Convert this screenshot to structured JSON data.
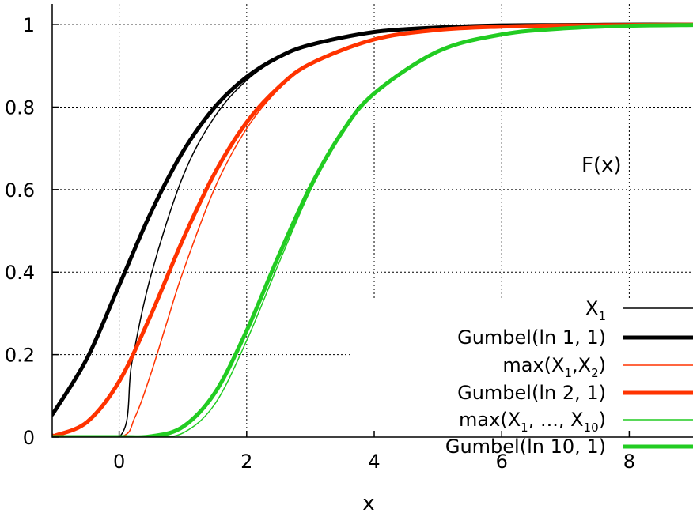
{
  "chart_data": {
    "type": "line",
    "title": "",
    "xlabel": "x",
    "ylabel": "",
    "annotation": "F(x)",
    "xlim": [
      -1.05,
      9.0
    ],
    "ylim": [
      0,
      1.05
    ],
    "x_ticks": [
      0,
      2,
      4,
      6,
      8
    ],
    "y_ticks": [
      0,
      0.2,
      0.4,
      0.6,
      0.8,
      1
    ],
    "x_tick_labels": [
      "0",
      "2",
      "4",
      "6",
      "8"
    ],
    "y_tick_labels": [
      "0",
      "0.2",
      "0.4",
      "0.6",
      "0.8",
      "1"
    ],
    "grid": true,
    "legend_position": "bottom-right",
    "series": [
      {
        "name": "X1",
        "legend": {
          "base": "X",
          "sub": "1",
          "suffix": ""
        },
        "color": "#000000",
        "width": 1.5,
        "x": [
          -1.05,
          0,
          0.2,
          0.5,
          1,
          1.5,
          2,
          2.5,
          3,
          4,
          5,
          6,
          7,
          8,
          9
        ],
        "y": [
          0,
          0,
          0.181,
          0.393,
          0.632,
          0.777,
          0.865,
          0.918,
          0.95,
          0.982,
          0.993,
          0.998,
          0.999,
          1.0,
          1.0
        ]
      },
      {
        "name": "Gumbel(ln 1, 1)",
        "legend": {
          "base": "Gumbel(ln 1, 1)",
          "sub": "",
          "suffix": ""
        },
        "color": "#000000",
        "width": 5,
        "x": [
          -1.05,
          -1,
          -0.5,
          0,
          0.5,
          1,
          1.5,
          2,
          2.5,
          3,
          4,
          5,
          6,
          7,
          8,
          9
        ],
        "y": [
          0.058,
          0.066,
          0.192,
          0.368,
          0.545,
          0.692,
          0.8,
          0.873,
          0.921,
          0.951,
          0.982,
          0.993,
          0.998,
          0.999,
          1.0,
          1.0
        ]
      },
      {
        "name": "max(X1,X2)",
        "legend": {
          "base": "max(X",
          "sub": "1",
          "mid": ",X",
          "sub2": "2",
          "suffix": ")"
        },
        "color": "#ff3300",
        "width": 1.5,
        "x": [
          -1.05,
          0,
          0.25,
          0.5,
          0.75,
          1,
          1.5,
          2,
          2.5,
          3,
          4,
          5,
          6,
          7,
          8,
          9
        ],
        "y": [
          0,
          0,
          0.049,
          0.155,
          0.279,
          0.4,
          0.604,
          0.748,
          0.843,
          0.903,
          0.964,
          0.987,
          0.995,
          0.998,
          0.999,
          1.0
        ]
      },
      {
        "name": "Gumbel(ln 2, 1)",
        "legend": {
          "base": "Gumbel(ln 2, 1)",
          "sub": "",
          "suffix": ""
        },
        "color": "#ff3300",
        "width": 5,
        "x": [
          -1.05,
          -1,
          -0.5,
          0,
          0.5,
          1,
          1.5,
          2,
          2.5,
          3,
          4,
          5,
          6,
          7,
          8,
          9
        ],
        "y": [
          0.004,
          0.004,
          0.037,
          0.135,
          0.297,
          0.479,
          0.64,
          0.763,
          0.848,
          0.905,
          0.964,
          0.987,
          0.995,
          0.998,
          0.999,
          1.0
        ]
      },
      {
        "name": "max(X1, ..., X10)",
        "legend": {
          "base": "max(X",
          "sub": "1",
          "mid": ", ..., X",
          "sub2": "10",
          "suffix": ")"
        },
        "color": "#22cc22",
        "width": 1.5,
        "x": [
          -1.05,
          0,
          0.5,
          1,
          1.5,
          2,
          2.5,
          3,
          3.5,
          4,
          5,
          6,
          7,
          8,
          9
        ],
        "y": [
          0,
          0,
          0.0001,
          0.01,
          0.08,
          0.234,
          0.42,
          0.598,
          0.735,
          0.831,
          0.935,
          0.975,
          0.991,
          0.997,
          0.999
        ]
      },
      {
        "name": "Gumbel(ln 10, 1)",
        "legend": {
          "base": "Gumbel(ln 10, 1)",
          "sub": "",
          "suffix": ""
        },
        "color": "#22cc22",
        "width": 5,
        "x": [
          -1.05,
          0,
          0.5,
          1,
          1.5,
          2,
          2.5,
          3,
          3.5,
          4,
          5,
          6,
          7,
          8,
          9
        ],
        "y": [
          0,
          5e-05,
          0.002,
          0.025,
          0.107,
          0.258,
          0.439,
          0.607,
          0.74,
          0.833,
          0.935,
          0.976,
          0.991,
          0.997,
          0.999
        ]
      }
    ]
  }
}
